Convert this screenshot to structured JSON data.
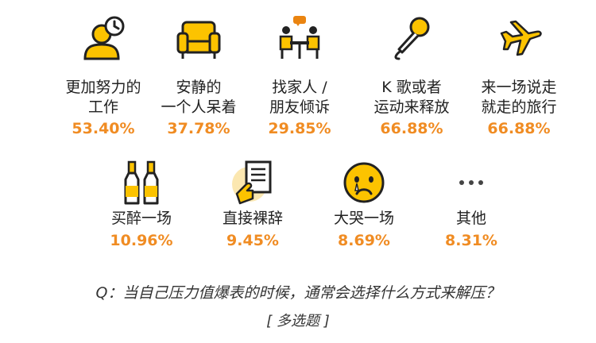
{
  "colors": {
    "accent": "#f08c23",
    "icon_yellow": "#fcc300",
    "icon_line": "#222222",
    "icon_orange": "#ea8410",
    "icon_cream": "#fbe7b0"
  },
  "chart_data": {
    "type": "table",
    "items": [
      {
        "label": "更加努力的\n工作",
        "value": "53.40%",
        "percent": 53.4,
        "icon": "person-clock-icon"
      },
      {
        "label": "安静的\n一个人呆着",
        "value": "37.78%",
        "percent": 37.78,
        "icon": "armchair-icon"
      },
      {
        "label": "找家人 /\n朋友倾诉",
        "value": "29.85%",
        "percent": 29.85,
        "icon": "conversation-icon"
      },
      {
        "label": "K 歌或者\n运动来释放",
        "value": "66.88%",
        "percent": 66.88,
        "icon": "microphone-icon"
      },
      {
        "label": "来一场说走\n就走的旅行",
        "value": "66.88%",
        "percent": 66.88,
        "icon": "airplane-icon"
      },
      {
        "label": "买醉一场",
        "value": "10.96%",
        "percent": 10.96,
        "icon": "bottles-icon"
      },
      {
        "label": "直接裸辞",
        "value": "9.45%",
        "percent": 9.45,
        "icon": "resignation-letter-icon"
      },
      {
        "label": "大哭一场",
        "value": "8.69%",
        "percent": 8.69,
        "icon": "crying-face-icon"
      },
      {
        "label": "其他",
        "value": "8.31%",
        "percent": 8.31,
        "icon": "ellipsis-icon"
      }
    ],
    "question": "Q：当自己压力值爆表的时候，通常会选择什么方式来解压？",
    "note": "[ 多选题 ]"
  }
}
